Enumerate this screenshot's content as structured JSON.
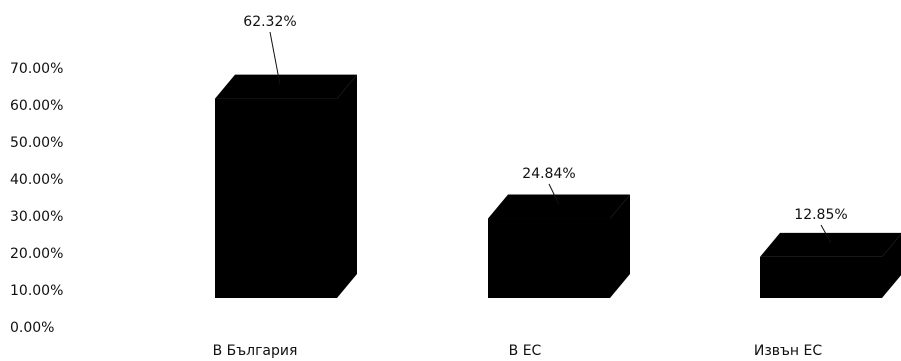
{
  "chart_data": {
    "type": "bar",
    "categories": [
      "В  България",
      "В ЕС",
      "Извън ЕС"
    ],
    "values": [
      62.32,
      24.84,
      12.85
    ],
    "data_labels": [
      "62.32%",
      "24.84%",
      "12.85%"
    ],
    "yticks": [
      "0.00%",
      "10.00%",
      "20.00%",
      "30.00%",
      "40.00%",
      "50.00%",
      "60.00%",
      "70.00%"
    ],
    "ylim": [
      0,
      70
    ],
    "grid": false,
    "style": "3d-column",
    "bar_color": "#000000"
  }
}
